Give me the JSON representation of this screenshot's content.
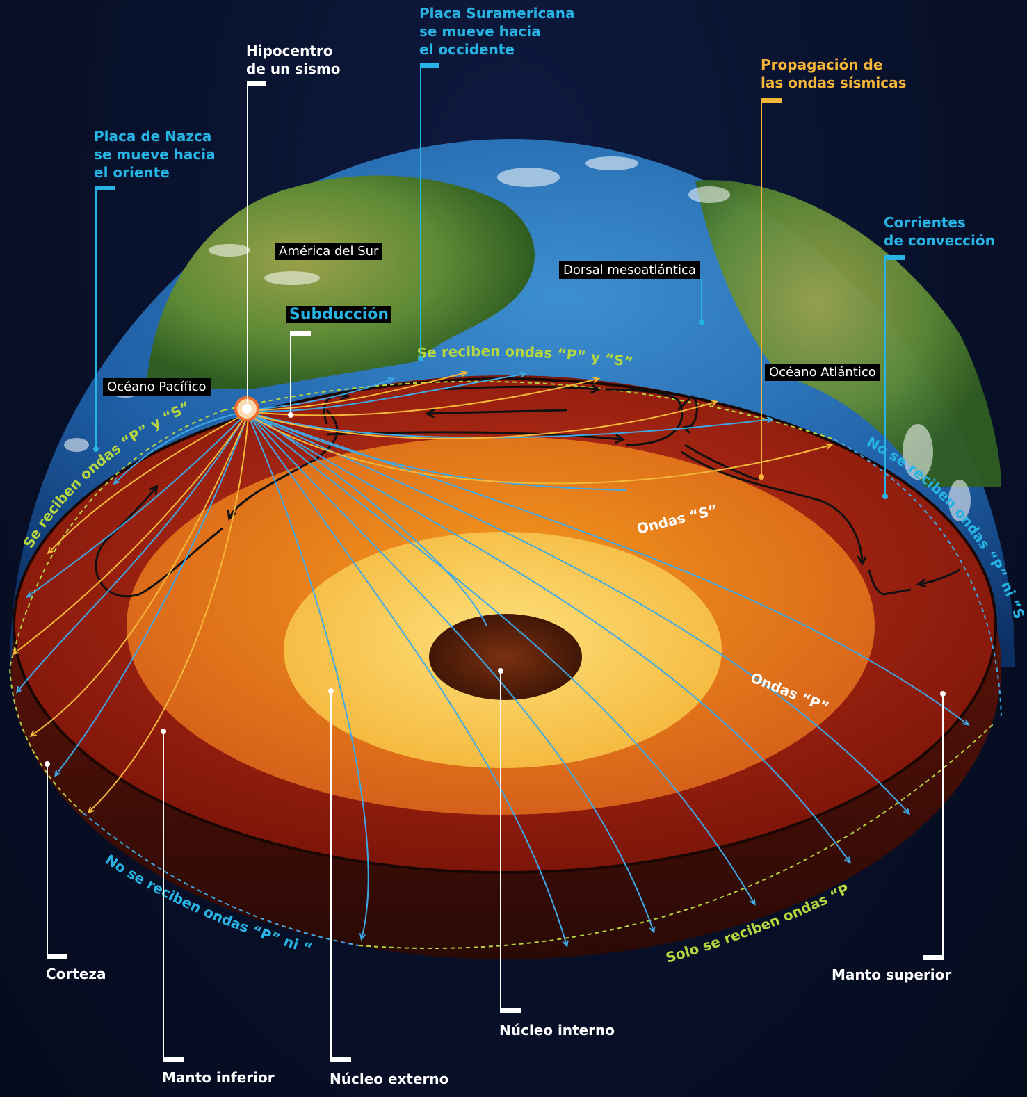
{
  "callouts": {
    "hipocentro": "Hipocentro\nde un sismo",
    "placa_suramericana": "Placa Suramericana\nse mueve hacia\nel occidente",
    "propagacion": "Propagación de\nlas ondas sísmicas",
    "placa_nazca": "Placa de Nazca\nse mueve hacia\nel oriente",
    "corrientes": "Corrientes\nde convección",
    "corteza": "Corteza",
    "manto_inferior": "Manto inferior",
    "nucleo_externo": "Núcleo externo",
    "nucleo_interno": "Núcleo interno",
    "manto_superior": "Manto superior"
  },
  "places": {
    "america_del_sur": "América del Sur",
    "dorsal": "Dorsal mesoatlántica",
    "oceano_pacifico": "Océano Pacífico",
    "oceano_atlantico": "Océano Atlántico",
    "subduccion": "Subducción"
  },
  "zones": {
    "top": "Se reciben ondas “P” y “S”",
    "left": "Se reciben ondas “P” y “S”",
    "right": "No se reciben ondas “P” ni “S”",
    "bottom_left": "No se reciben ondas “P” ni “S”",
    "bottom_right": "Solo se reciben ondas “P”"
  },
  "waves": {
    "s": "Ondas “S”",
    "p": "Ondas “P”"
  },
  "colors": {
    "cyan": "#27b4e4",
    "gold": "#f7b637",
    "p_wave": "#3ea9e6",
    "s_wave": "#f5b93a",
    "green_dash": "#b6d640"
  }
}
